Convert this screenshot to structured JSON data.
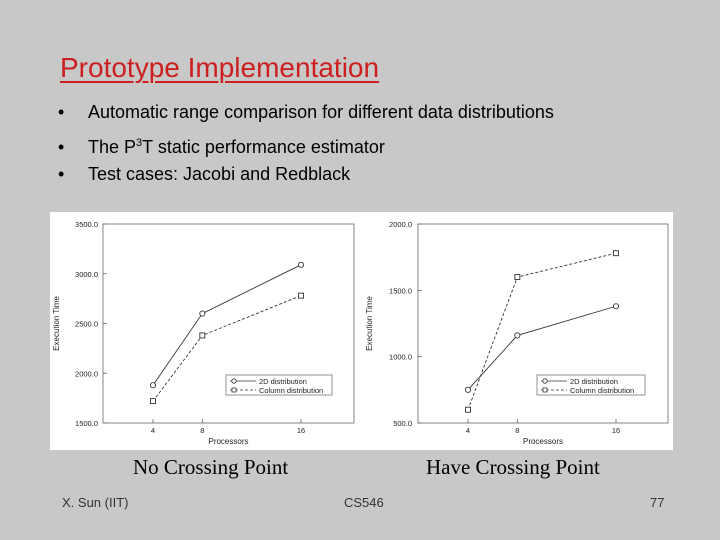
{
  "slide": {
    "title": "Prototype Implementation",
    "bullet_symbol": "•",
    "bullets": [
      {
        "text": "Automatic range comparison for different data distributions"
      },
      {
        "pre": "The P",
        "sup": "3",
        "post": "T static performance estimator"
      },
      {
        "text": "Test cases: Jacobi and Redblack"
      }
    ],
    "captions": {
      "left": "No Crossing Point",
      "right": "Have Crossing Point"
    },
    "footer": {
      "author": "X. Sun (IIT)",
      "course": "CS546",
      "page": "77"
    }
  },
  "chart_data": [
    {
      "type": "line",
      "xlabel": "Processors",
      "ylabel": "Execution Time",
      "x_ticks": [
        "4",
        "8",
        "16"
      ],
      "y_ticks": [
        "3500.0",
        "3000.0",
        "2500.0",
        "2000.0",
        "1500.0"
      ],
      "ylim": [
        1500,
        3500
      ],
      "grid": false,
      "legend_position": "bottom-right",
      "series": [
        {
          "name": "2D distribution",
          "marker": "circle",
          "dash": "solid",
          "x": [
            4,
            8,
            16
          ],
          "y": [
            1880,
            2600,
            3090
          ]
        },
        {
          "name": "Column distribution",
          "marker": "square",
          "dash": "dashed",
          "x": [
            4,
            8,
            16
          ],
          "y": [
            1720,
            2380,
            2780
          ]
        }
      ]
    },
    {
      "type": "line",
      "xlabel": "Processors",
      "ylabel": "Execution Time",
      "x_ticks": [
        "4",
        "8",
        "16"
      ],
      "y_ticks": [
        "2000.0",
        "1500.0",
        "1000.0",
        "500.0"
      ],
      "ylim": [
        500,
        2000
      ],
      "grid": false,
      "legend_position": "bottom-right",
      "series": [
        {
          "name": "2D distribution",
          "marker": "circle",
          "dash": "solid",
          "x": [
            4,
            8,
            16
          ],
          "y": [
            750,
            1160,
            1380
          ]
        },
        {
          "name": "Column distribution",
          "marker": "square",
          "dash": "dashed",
          "x": [
            4,
            8,
            16
          ],
          "y": [
            600,
            1600,
            1780
          ]
        }
      ]
    }
  ]
}
